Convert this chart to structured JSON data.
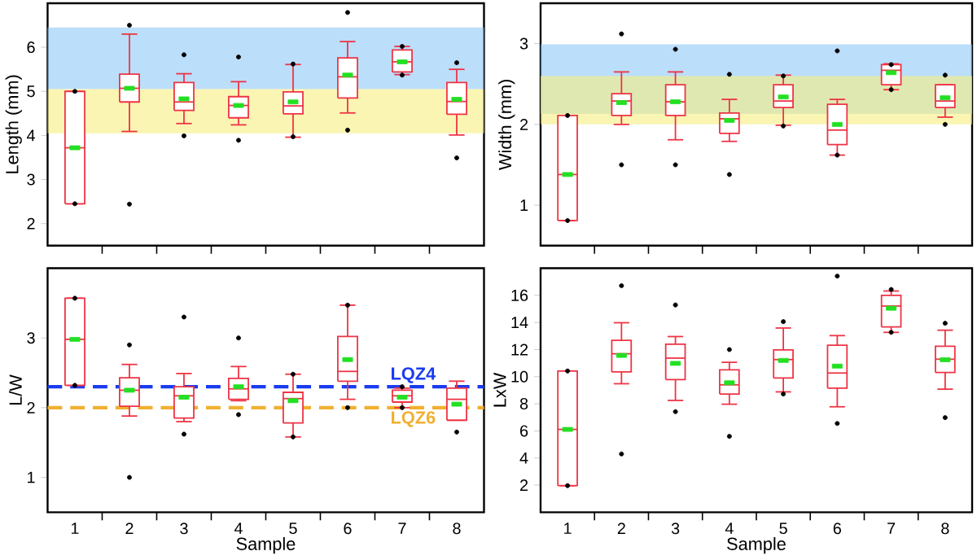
{
  "chart_data": [
    {
      "type": "box",
      "ylabel": "Length (mm)",
      "categories": [
        "1",
        "2",
        "3",
        "4",
        "5",
        "6",
        "7",
        "8"
      ],
      "tick_labels": "y",
      "color": "#ee3344",
      "ylim": [
        1.5,
        7.0
      ],
      "yticks": [
        2,
        3,
        4,
        5,
        6
      ],
      "bands": [
        {
          "axis": "y",
          "from": 5.05,
          "to": 6.45,
          "color": "#8ec8f8"
        },
        {
          "axis": "y",
          "from": 4.05,
          "to": 5.05,
          "color": "#f8ee80"
        }
      ],
      "boxes": [
        {
          "low": 2.45,
          "q1": 2.45,
          "median": 3.72,
          "q3": 5.0,
          "high": 5.0,
          "mean": 3.72,
          "outliers": [
            2.45,
            5.0
          ]
        },
        {
          "low": 4.09,
          "q1": 4.76,
          "median": 5.07,
          "q3": 5.39,
          "high": 6.3,
          "mean": 5.07,
          "outliers": [
            6.5,
            2.44
          ]
        },
        {
          "low": 4.27,
          "q1": 4.57,
          "median": 4.76,
          "q3": 5.2,
          "high": 5.4,
          "mean": 4.83,
          "outliers": [
            5.83,
            3.99
          ]
        },
        {
          "low": 4.24,
          "q1": 4.4,
          "median": 4.68,
          "q3": 4.88,
          "high": 5.22,
          "mean": 4.68,
          "outliers": [
            5.78,
            3.89
          ]
        },
        {
          "low": 3.96,
          "q1": 4.49,
          "median": 4.67,
          "q3": 4.99,
          "high": 5.61,
          "mean": 4.76,
          "outliers": [
            5.62,
            3.97
          ]
        },
        {
          "low": 4.51,
          "q1": 4.85,
          "median": 5.33,
          "q3": 5.76,
          "high": 6.13,
          "mean": 5.37,
          "outliers": [
            6.79,
            4.12
          ]
        },
        {
          "low": 5.38,
          "q1": 5.44,
          "median": 5.67,
          "q3": 5.94,
          "high": 6.02,
          "mean": 5.67,
          "outliers": [
            6.02,
            5.37
          ]
        },
        {
          "low": 4.01,
          "q1": 4.48,
          "median": 4.77,
          "q3": 5.2,
          "high": 5.5,
          "mean": 4.82,
          "outliers": [
            5.65,
            3.49
          ]
        }
      ]
    },
    {
      "type": "box",
      "ylabel": "Width (mm)",
      "categories": [
        "1",
        "2",
        "3",
        "4",
        "5",
        "6",
        "7",
        "8"
      ],
      "tick_labels": "y",
      "color": "#ee3344",
      "ylim": [
        0.5,
        3.5
      ],
      "yticks": [
        1,
        2,
        3
      ],
      "bands": [
        {
          "axis": "y",
          "from": 2.13,
          "to": 2.99,
          "color": "#8ec8f8"
        },
        {
          "axis": "y",
          "from": 2.0,
          "to": 2.6,
          "color": "#f8ee80"
        }
      ],
      "boxes": [
        {
          "low": 0.81,
          "q1": 0.81,
          "median": 1.38,
          "q3": 2.11,
          "high": 2.11,
          "mean": 1.38,
          "outliers": [
            2.11,
            0.81
          ]
        },
        {
          "low": 2.0,
          "q1": 2.11,
          "median": 2.29,
          "q3": 2.38,
          "high": 2.65,
          "mean": 2.27,
          "outliers": [
            3.12,
            1.5
          ]
        },
        {
          "low": 1.81,
          "q1": 2.11,
          "median": 2.28,
          "q3": 2.49,
          "high": 2.65,
          "mean": 2.28,
          "outliers": [
            2.93,
            1.5
          ]
        },
        {
          "low": 1.79,
          "q1": 1.89,
          "median": 2.07,
          "q3": 2.14,
          "high": 2.31,
          "mean": 2.05,
          "outliers": [
            2.62,
            1.38
          ]
        },
        {
          "low": 1.99,
          "q1": 2.21,
          "median": 2.29,
          "q3": 2.49,
          "high": 2.61,
          "mean": 2.34,
          "outliers": [
            2.6,
            1.98
          ]
        },
        {
          "low": 1.62,
          "q1": 1.75,
          "median": 1.93,
          "q3": 2.25,
          "high": 2.31,
          "mean": 2.0,
          "outliers": [
            2.91,
            1.62
          ]
        },
        {
          "low": 2.43,
          "q1": 2.49,
          "median": 2.67,
          "q3": 2.74,
          "high": 2.75,
          "mean": 2.64,
          "outliers": [
            2.74,
            2.43
          ]
        },
        {
          "low": 2.09,
          "q1": 2.21,
          "median": 2.29,
          "q3": 2.49,
          "high": 2.49,
          "mean": 2.33,
          "outliers": [
            2.61,
            2.0
          ]
        }
      ]
    },
    {
      "type": "box",
      "xlabel": "Sample",
      "ylabel": "L/W",
      "categories": [
        "1",
        "2",
        "3",
        "4",
        "5",
        "6",
        "7",
        "8"
      ],
      "color": "#ee3344",
      "ylim": [
        0.5,
        4.0
      ],
      "yticks": [
        1,
        2,
        3
      ],
      "ref_lines": [
        {
          "axis": "y",
          "value": 2.3,
          "label": "LQZ4",
          "color": "#1a3cf0",
          "line_style": "dashed"
        },
        {
          "axis": "y",
          "value": 2.0,
          "label": "LQZ6",
          "color": "#f0b030",
          "line_style": "dashed"
        }
      ],
      "boxes": [
        {
          "low": 2.32,
          "q1": 2.32,
          "median": 2.98,
          "q3": 3.57,
          "high": 3.57,
          "mean": 2.98,
          "outliers": [
            3.57,
            2.32
          ]
        },
        {
          "low": 1.88,
          "q1": 2.02,
          "median": 2.25,
          "q3": 2.43,
          "high": 2.62,
          "mean": 2.25,
          "outliers": [
            2.9,
            1.0
          ]
        },
        {
          "low": 1.8,
          "q1": 1.85,
          "median": 2.17,
          "q3": 2.3,
          "high": 2.49,
          "mean": 2.15,
          "outliers": [
            3.3,
            1.62
          ]
        },
        {
          "low": 2.1,
          "q1": 2.12,
          "median": 2.27,
          "q3": 2.42,
          "high": 2.59,
          "mean": 2.3,
          "outliers": [
            3.0,
            1.9
          ]
        },
        {
          "low": 1.58,
          "q1": 1.78,
          "median": 2.13,
          "q3": 2.22,
          "high": 2.48,
          "mean": 2.1,
          "outliers": [
            2.48,
            1.58
          ]
        },
        {
          "low": 2.12,
          "q1": 2.38,
          "median": 2.52,
          "q3": 3.02,
          "high": 3.47,
          "mean": 2.69,
          "outliers": [
            3.47,
            2.0
          ]
        },
        {
          "low": 2.0,
          "q1": 2.08,
          "median": 2.17,
          "q3": 2.25,
          "high": 2.28,
          "mean": 2.15,
          "outliers": [
            2.3,
            2.0
          ]
        },
        {
          "low": 1.82,
          "q1": 1.82,
          "median": 2.12,
          "q3": 2.28,
          "high": 2.38,
          "mean": 2.05,
          "outliers": [
            1.65
          ]
        }
      ]
    },
    {
      "type": "box",
      "xlabel": "Sample",
      "ylabel": "LxW",
      "categories": [
        "1",
        "2",
        "3",
        "4",
        "5",
        "6",
        "7",
        "8"
      ],
      "color": "#ee3344",
      "ylim": [
        0,
        18
      ],
      "yticks": [
        2,
        4,
        6,
        8,
        10,
        12,
        14,
        16
      ],
      "boxes": [
        {
          "low": 1.96,
          "q1": 1.96,
          "median": 6.11,
          "q3": 10.42,
          "high": 10.42,
          "mean": 6.11,
          "outliers": [
            10.42,
            1.96
          ]
        },
        {
          "low": 9.48,
          "q1": 10.35,
          "median": 11.69,
          "q3": 12.68,
          "high": 13.98,
          "mean": 11.57,
          "outliers": [
            16.71,
            4.3
          ]
        },
        {
          "low": 8.25,
          "q1": 9.79,
          "median": 11.37,
          "q3": 12.4,
          "high": 12.96,
          "mean": 10.98,
          "outliers": [
            15.29,
            7.42
          ]
        },
        {
          "low": 7.97,
          "q1": 8.72,
          "median": 9.4,
          "q3": 10.5,
          "high": 11.06,
          "mean": 9.55,
          "outliers": [
            12.0,
            5.6
          ]
        },
        {
          "low": 8.88,
          "q1": 9.91,
          "median": 11.26,
          "q3": 11.97,
          "high": 13.59,
          "mean": 11.2,
          "outliers": [
            14.06,
            8.72
          ]
        },
        {
          "low": 7.78,
          "q1": 9.16,
          "median": 10.27,
          "q3": 12.32,
          "high": 13.03,
          "mean": 10.78,
          "outliers": [
            17.42,
            6.55
          ]
        },
        {
          "low": 13.27,
          "q1": 13.67,
          "median": 15.21,
          "q3": 16.0,
          "high": 16.32,
          "mean": 15.05,
          "outliers": [
            16.43,
            13.27
          ]
        },
        {
          "low": 9.08,
          "q1": 10.31,
          "median": 11.29,
          "q3": 12.24,
          "high": 13.43,
          "mean": 11.25,
          "outliers": [
            13.94,
            6.98
          ]
        }
      ]
    }
  ]
}
